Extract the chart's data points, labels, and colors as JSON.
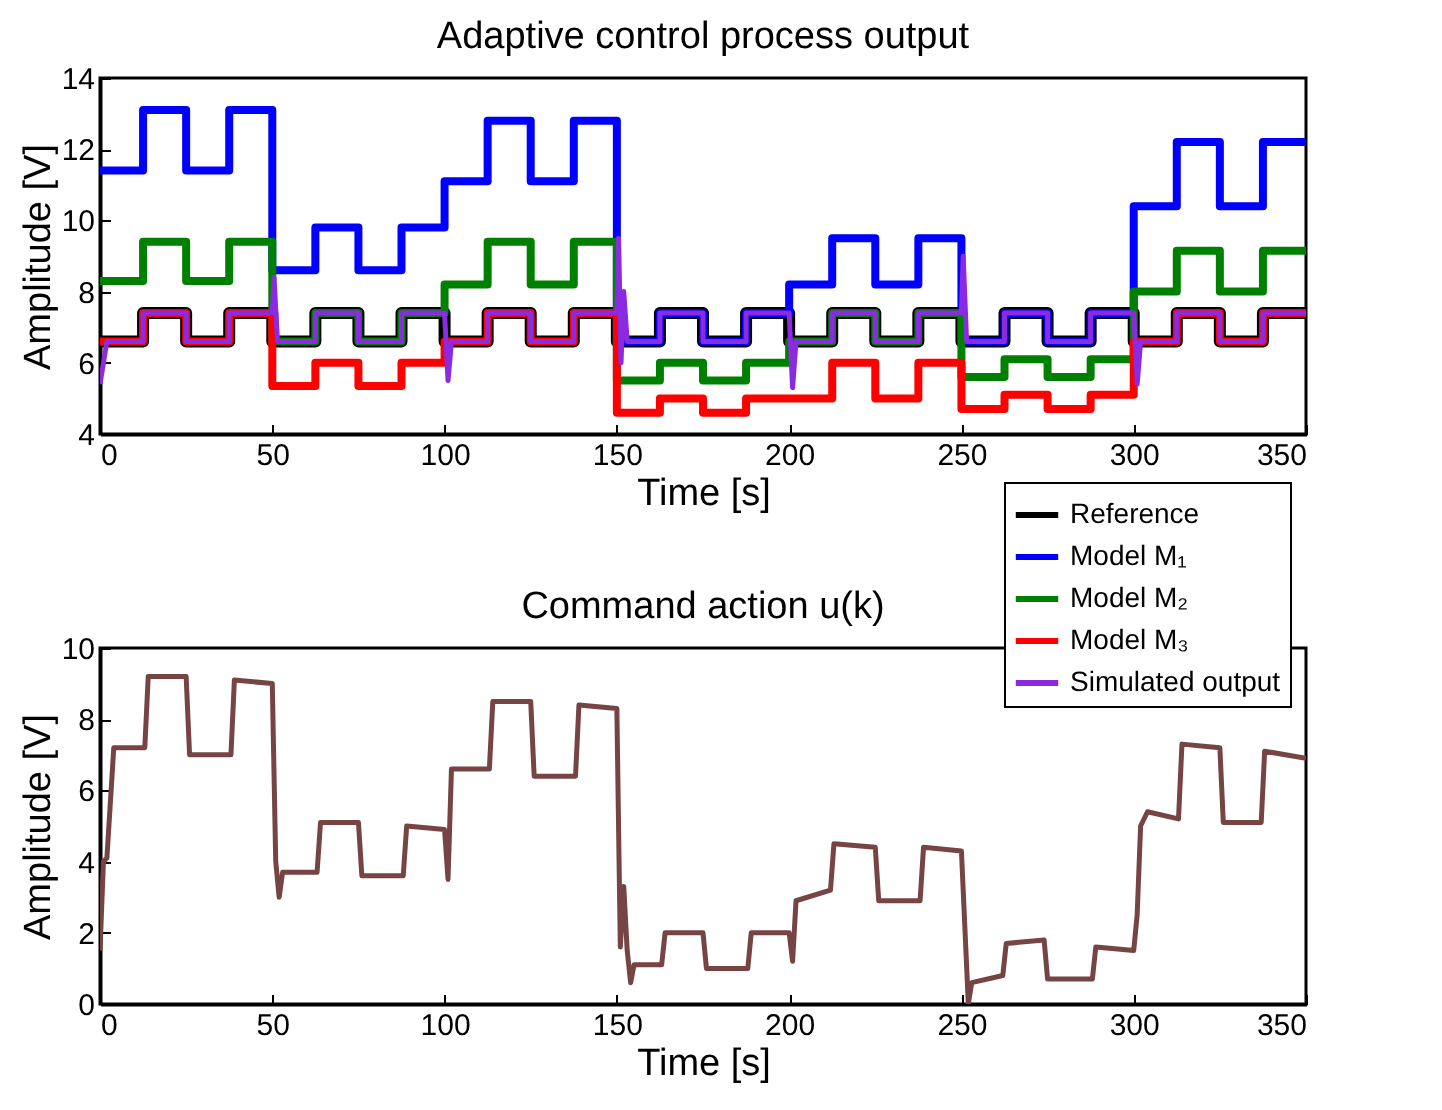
{
  "chart_data": [
    {
      "type": "line",
      "title": "Adaptive control process output",
      "xlabel": "Time [s]",
      "ylabel": "Amplitude [V]",
      "xlim": [
        0,
        350
      ],
      "xticks": [
        0,
        50,
        100,
        150,
        200,
        250,
        300,
        350
      ],
      "ylim": [
        4,
        14
      ],
      "yticks": [
        4,
        6,
        8,
        10,
        12,
        14
      ],
      "legend": "bottom right",
      "x": [
        0,
        12.5,
        12.5,
        25,
        25,
        37.5,
        37.5,
        50,
        50,
        62.5,
        62.5,
        75,
        75,
        87.5,
        87.5,
        100,
        100,
        112.5,
        112.5,
        125,
        125,
        137.5,
        137.5,
        150,
        150,
        162.5,
        162.5,
        175,
        175,
        187.5,
        187.5,
        200,
        200,
        212.5,
        212.5,
        225,
        225,
        237.5,
        237.5,
        250,
        250,
        262.5,
        262.5,
        275,
        275,
        287.5,
        287.5,
        300,
        300,
        312.5,
        312.5,
        325,
        325,
        337.5,
        337.5,
        350
      ],
      "series": [
        {
          "name": "Reference",
          "color": "#000000",
          "values": [
            6.6,
            6.6,
            7.4,
            7.4,
            6.6,
            6.6,
            7.4,
            7.4,
            6.6,
            6.6,
            7.4,
            7.4,
            6.6,
            6.6,
            7.4,
            7.4,
            6.6,
            6.6,
            7.4,
            7.4,
            6.6,
            6.6,
            7.4,
            7.4,
            6.6,
            6.6,
            7.4,
            7.4,
            6.6,
            6.6,
            7.4,
            7.4,
            6.6,
            6.6,
            7.4,
            7.4,
            6.6,
            6.6,
            7.4,
            7.4,
            6.6,
            6.6,
            7.4,
            7.4,
            6.6,
            6.6,
            7.4,
            7.4,
            6.6,
            6.6,
            7.4,
            7.4,
            6.6,
            6.6,
            7.4,
            7.4
          ]
        },
        {
          "name": "Model M₁",
          "color": "#0000ff",
          "values": [
            11.4,
            11.4,
            13.1,
            13.1,
            11.4,
            11.4,
            13.1,
            13.1,
            8.6,
            8.6,
            9.8,
            9.8,
            8.6,
            8.6,
            9.8,
            9.8,
            11.1,
            11.1,
            12.8,
            12.8,
            11.1,
            11.1,
            12.8,
            12.8,
            6.6,
            6.6,
            7.4,
            7.4,
            6.6,
            6.6,
            7.4,
            7.4,
            8.2,
            8.2,
            9.5,
            9.5,
            8.2,
            8.2,
            9.5,
            9.5,
            6.6,
            6.6,
            7.4,
            7.4,
            6.6,
            6.6,
            7.4,
            7.4,
            10.4,
            10.4,
            12.2,
            12.2,
            10.4,
            10.4,
            12.2,
            12.2
          ]
        },
        {
          "name": "Model M₂",
          "color": "#008000",
          "values": [
            8.3,
            8.3,
            9.4,
            9.4,
            8.3,
            8.3,
            9.4,
            9.4,
            6.6,
            6.6,
            7.4,
            7.4,
            6.6,
            6.6,
            7.4,
            7.4,
            8.2,
            8.2,
            9.4,
            9.4,
            8.2,
            8.2,
            9.4,
            9.4,
            5.5,
            5.5,
            6.0,
            6.0,
            5.5,
            5.5,
            6.0,
            6.0,
            6.6,
            6.6,
            7.4,
            7.4,
            6.6,
            6.6,
            7.4,
            7.4,
            5.6,
            5.6,
            6.1,
            6.1,
            5.6,
            5.6,
            6.1,
            6.1,
            8.0,
            8.0,
            9.15,
            9.15,
            8.0,
            8.0,
            9.15,
            9.15
          ]
        },
        {
          "name": "Model M₃",
          "color": "#ff0000",
          "values": [
            6.6,
            6.6,
            7.4,
            7.4,
            6.6,
            6.6,
            7.4,
            7.4,
            5.35,
            5.35,
            6.0,
            6.0,
            5.35,
            5.35,
            6.0,
            6.0,
            6.6,
            6.6,
            7.4,
            7.4,
            6.6,
            6.6,
            7.4,
            7.4,
            4.6,
            4.6,
            5.0,
            5.0,
            4.6,
            4.6,
            5.0,
            5.0,
            5.0,
            5.0,
            6.0,
            6.0,
            5.0,
            5.0,
            6.0,
            6.0,
            4.7,
            4.7,
            5.1,
            5.1,
            4.7,
            4.7,
            5.1,
            5.1,
            6.6,
            6.6,
            7.4,
            7.4,
            6.6,
            6.6,
            7.4,
            7.4
          ]
        },
        {
          "name": "Simulated output",
          "color": "#8a2be2",
          "x": [
            0,
            2,
            12.5,
            12.5,
            25,
            25,
            37.5,
            37.5,
            50,
            50.5,
            51.5,
            62.5,
            62.5,
            75,
            75,
            87.5,
            87.5,
            100,
            101,
            102,
            112.5,
            112.5,
            125,
            125,
            137.5,
            137.5,
            150,
            150.5,
            151.2,
            152,
            153,
            162.5,
            162.5,
            175,
            175,
            187.5,
            187.5,
            200,
            201,
            202,
            212.5,
            212.5,
            225,
            225,
            237.5,
            237.5,
            250,
            250.5,
            251.5,
            262.5,
            262.5,
            275,
            275,
            287.5,
            287.5,
            300,
            301,
            302,
            312.5,
            312.5,
            325,
            325,
            337.5,
            337.5,
            350
          ],
          "values": [
            5.4,
            6.6,
            6.6,
            7.4,
            7.4,
            6.6,
            6.6,
            7.4,
            7.4,
            8.4,
            6.6,
            6.6,
            7.4,
            7.4,
            6.6,
            6.6,
            7.4,
            7.4,
            5.5,
            6.6,
            6.6,
            7.4,
            7.4,
            6.6,
            6.6,
            7.4,
            7.4,
            9.5,
            6.0,
            8.0,
            6.6,
            6.6,
            7.4,
            7.4,
            6.6,
            6.6,
            7.4,
            7.4,
            5.3,
            6.6,
            6.6,
            7.4,
            7.4,
            6.6,
            6.6,
            7.4,
            7.4,
            9.0,
            6.6,
            6.6,
            7.4,
            7.4,
            6.6,
            6.6,
            7.4,
            7.4,
            5.4,
            6.6,
            6.6,
            7.4,
            7.4,
            6.6,
            6.6,
            7.4,
            7.4
          ]
        }
      ]
    },
    {
      "type": "line",
      "title": "Command action u(k)",
      "xlabel": "Time [s]",
      "ylabel": "Amplitude [V]",
      "xlim": [
        0,
        350
      ],
      "xticks": [
        0,
        50,
        100,
        150,
        200,
        250,
        300,
        350
      ],
      "ylim": [
        0,
        10
      ],
      "yticks": [
        0,
        2,
        4,
        6,
        8,
        10
      ],
      "x": [
        0,
        1,
        2,
        4,
        13,
        14,
        25,
        26,
        38,
        39,
        50,
        51,
        52,
        53,
        63,
        64,
        75,
        76,
        88,
        89,
        100,
        101,
        102,
        113,
        114,
        125,
        126,
        138,
        139,
        150,
        151,
        152,
        153,
        154,
        155,
        163,
        164,
        175,
        176,
        188,
        189,
        200,
        201,
        202,
        212,
        213,
        225,
        226,
        238,
        239,
        250,
        252,
        253,
        262,
        263,
        274,
        275,
        288,
        289,
        300,
        301,
        302,
        304,
        313,
        314,
        325,
        326,
        337,
        338,
        350
      ],
      "series": [
        {
          "color": "#774444",
          "values": [
            1.5,
            4.0,
            4.1,
            7.2,
            7.2,
            9.2,
            9.2,
            7.0,
            7.0,
            9.1,
            9.0,
            4.0,
            3.0,
            3.7,
            3.7,
            5.1,
            5.1,
            3.6,
            3.6,
            5.0,
            4.9,
            3.5,
            6.6,
            6.6,
            8.5,
            8.5,
            6.4,
            6.4,
            8.4,
            8.3,
            1.6,
            3.3,
            1.5,
            0.6,
            1.1,
            1.1,
            2.0,
            2.0,
            1.0,
            1.0,
            2.0,
            2.0,
            1.2,
            2.9,
            3.2,
            4.5,
            4.4,
            2.9,
            2.9,
            4.4,
            4.3,
            0.0,
            0.6,
            0.8,
            1.7,
            1.8,
            0.7,
            0.7,
            1.6,
            1.5,
            2.5,
            5.0,
            5.4,
            5.2,
            7.3,
            7.2,
            5.1,
            5.1,
            7.1,
            6.9
          ]
        }
      ]
    }
  ]
}
